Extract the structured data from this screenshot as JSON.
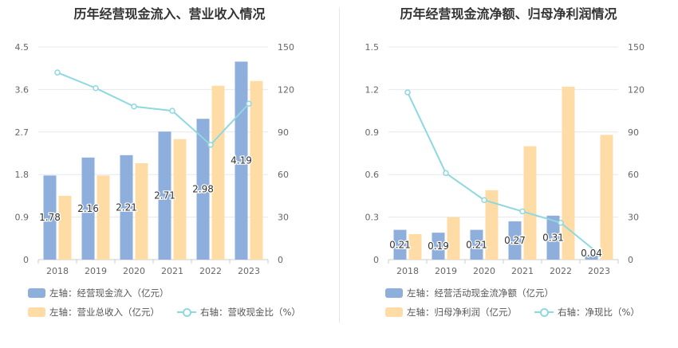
{
  "chart_data": [
    {
      "type": "bar",
      "title": "历年经营现金流入、营业收入情况",
      "categories": [
        "2018",
        "2019",
        "2020",
        "2021",
        "2022",
        "2023"
      ],
      "left_axis": {
        "ticks": [
          "0",
          "0.9",
          "1.8",
          "2.7",
          "3.6",
          "4.5"
        ],
        "ylim": [
          0,
          4.5
        ]
      },
      "right_axis": {
        "ticks": [
          "0",
          "30",
          "60",
          "90",
          "120",
          "150"
        ],
        "ylim": [
          0,
          150
        ]
      },
      "series": [
        {
          "name": "左轴：经营现金流入（亿元）",
          "axis": "left",
          "type": "bar",
          "color": "#8eaedc",
          "values": [
            1.78,
            2.16,
            2.21,
            2.71,
            2.98,
            4.19
          ],
          "labels": [
            "1.78",
            "2.16",
            "2.21",
            "2.71",
            "2.98",
            "4.19"
          ]
        },
        {
          "name": "左轴：营业总收入（亿元）",
          "axis": "left",
          "type": "bar",
          "color": "#ffdca5",
          "values": [
            1.35,
            1.78,
            2.04,
            2.55,
            3.68,
            3.78
          ]
        },
        {
          "name": "右轴：营收现金比（%）",
          "axis": "right",
          "type": "line",
          "color": "#8fd8df",
          "values": [
            132,
            121,
            108,
            105,
            81,
            110
          ]
        }
      ],
      "grid": true
    },
    {
      "type": "bar",
      "title": "历年经营现金流净额、归母净利润情况",
      "categories": [
        "2018",
        "2019",
        "2020",
        "2021",
        "2022",
        "2023"
      ],
      "left_axis": {
        "ticks": [
          "0",
          "0.3",
          "0.6",
          "0.9",
          "1.2",
          "1.5"
        ],
        "ylim": [
          0,
          1.5
        ]
      },
      "right_axis": {
        "ticks": [
          "0",
          "30",
          "60",
          "90",
          "120",
          "150"
        ],
        "ylim": [
          0,
          150
        ]
      },
      "series": [
        {
          "name": "左轴：经营活动现金流净额（亿元）",
          "axis": "left",
          "type": "bar",
          "color": "#8eaedc",
          "values": [
            0.21,
            0.19,
            0.21,
            0.27,
            0.31,
            0.04
          ],
          "labels": [
            "0.21",
            "0.19",
            "0.21",
            "0.27",
            "0.31",
            "0.04"
          ]
        },
        {
          "name": "左轴：归母净利润（亿元）",
          "axis": "left",
          "type": "bar",
          "color": "#ffdca5",
          "values": [
            0.18,
            0.3,
            0.49,
            0.8,
            1.22,
            0.88
          ]
        },
        {
          "name": "右轴：净现比（%）",
          "axis": "right",
          "type": "line",
          "color": "#8fd8df",
          "values": [
            118,
            61,
            42,
            34,
            26,
            4
          ]
        }
      ],
      "grid": true
    }
  ]
}
